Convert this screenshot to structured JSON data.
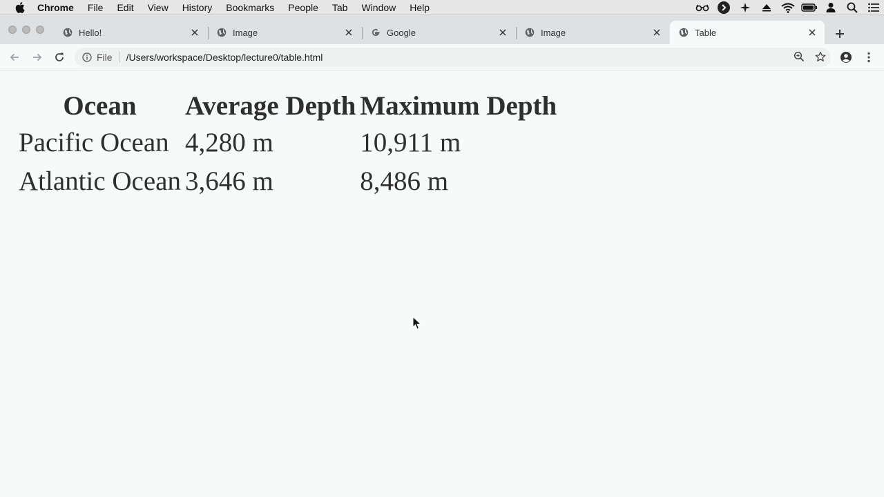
{
  "menubar": {
    "app": "Chrome",
    "items": [
      "File",
      "Edit",
      "View",
      "History",
      "Bookmarks",
      "People",
      "Tab",
      "Window",
      "Help"
    ]
  },
  "tabs": [
    {
      "title": "Hello!",
      "icon": "globe-icon",
      "active": false
    },
    {
      "title": "Image",
      "icon": "globe-icon",
      "active": false
    },
    {
      "title": "Google",
      "icon": "google-icon",
      "active": false
    },
    {
      "title": "Image",
      "icon": "globe-icon",
      "active": false
    },
    {
      "title": "Table",
      "icon": "globe-icon",
      "active": true
    }
  ],
  "toolbar": {
    "scheme": "File",
    "url": "/Users/workspace/Desktop/lecture0/table.html"
  },
  "table": {
    "headers": [
      "Ocean",
      "Average Depth",
      "Maximum Depth"
    ],
    "rows": [
      [
        "Pacific Ocean",
        "4,280 m",
        "10,911 m"
      ],
      [
        "Atlantic Ocean",
        "3,646 m",
        "8,486 m"
      ]
    ]
  },
  "colors": {
    "page_bg": "#f6fbf9",
    "tabstrip_bg": "#dee1e4",
    "menubar_bg": "#e6e6e6",
    "text": "#2f2f2f"
  }
}
